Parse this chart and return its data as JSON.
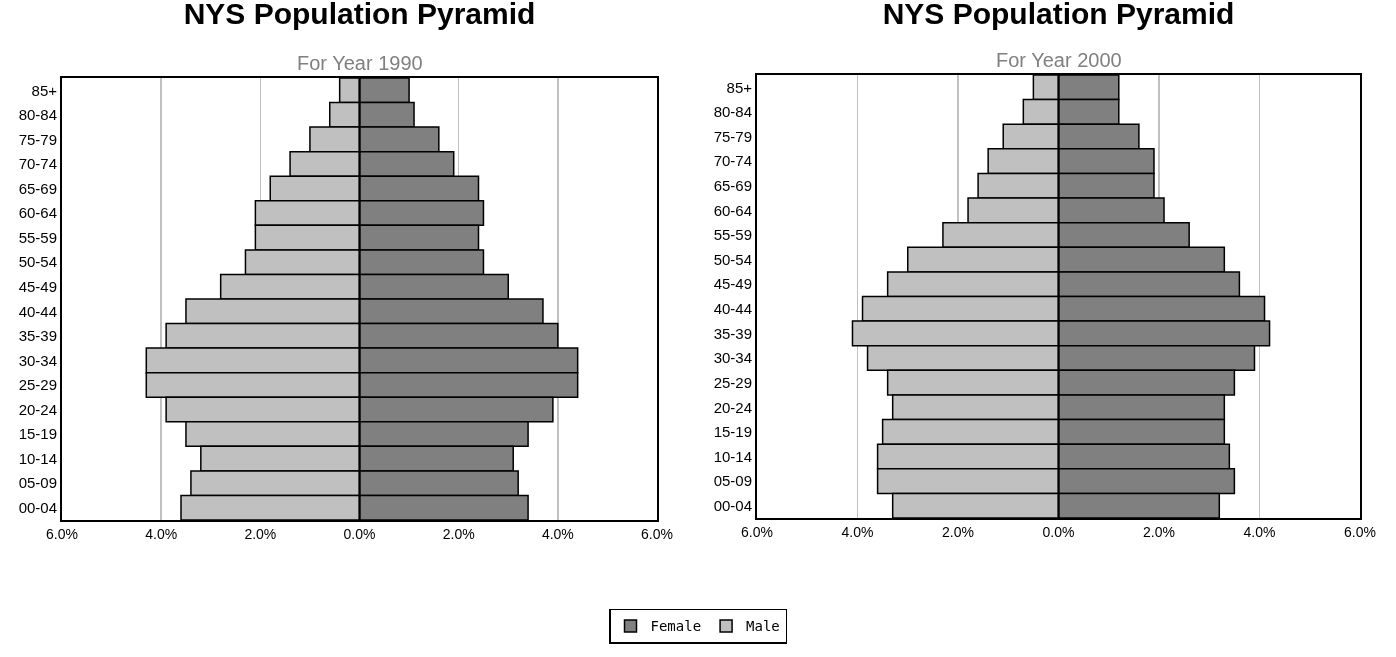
{
  "chart_data": [
    {
      "type": "bar",
      "title": "NYS Population Pyramid",
      "subtitle": "For Year 1990",
      "orientation": "horizontal",
      "stacked": true,
      "grid": "x",
      "legend": "bottom",
      "categories": [
        "85+",
        "80-84",
        "75-79",
        "70-74",
        "65-69",
        "60-64",
        "55-59",
        "50-54",
        "45-49",
        "40-44",
        "35-39",
        "30-34",
        "25-29",
        "20-24",
        "15-19",
        "10-14",
        "05-09",
        "00-04"
      ],
      "xlim": [
        -6,
        6
      ],
      "xticks": [
        {
          "value": -6,
          "label": "6.0%"
        },
        {
          "value": -4,
          "label": "4.0%"
        },
        {
          "value": -2,
          "label": "2.0%"
        },
        {
          "value": 0,
          "label": "0.0%"
        },
        {
          "value": 2,
          "label": "2.0%"
        },
        {
          "value": 4,
          "label": "4.0%"
        },
        {
          "value": 6,
          "label": "6.0%"
        }
      ],
      "series": [
        {
          "name": "Female",
          "color": "#808080",
          "values": [
            1.0,
            1.1,
            1.6,
            1.9,
            2.4,
            2.5,
            2.4,
            2.5,
            3.0,
            3.7,
            4.0,
            4.4,
            4.4,
            3.9,
            3.4,
            3.1,
            3.2,
            3.4
          ]
        },
        {
          "name": "Male",
          "color": "#c0c0c0",
          "values": [
            -0.4,
            -0.6,
            -1.0,
            -1.4,
            -1.8,
            -2.1,
            -2.1,
            -2.3,
            -2.8,
            -3.5,
            -3.9,
            -4.3,
            -4.3,
            -3.9,
            -3.5,
            -3.2,
            -3.4,
            -3.6
          ]
        }
      ]
    },
    {
      "type": "bar",
      "title": "NYS Population Pyramid",
      "subtitle": "For Year 2000",
      "orientation": "horizontal",
      "stacked": true,
      "grid": "x",
      "categories": [
        "85+",
        "80-84",
        "75-79",
        "70-74",
        "65-69",
        "60-64",
        "55-59",
        "50-54",
        "45-49",
        "40-44",
        "35-39",
        "30-34",
        "25-29",
        "20-24",
        "15-19",
        "10-14",
        "05-09",
        "00-04"
      ],
      "xlim": [
        -6,
        6
      ],
      "xticks": [
        {
          "value": -6,
          "label": "6.0%"
        },
        {
          "value": -4,
          "label": "4.0%"
        },
        {
          "value": -2,
          "label": "2.0%"
        },
        {
          "value": 0,
          "label": "0.0%"
        },
        {
          "value": 2,
          "label": "2.0%"
        },
        {
          "value": 4,
          "label": "4.0%"
        },
        {
          "value": 6,
          "label": "6.0%"
        }
      ],
      "series": [
        {
          "color": "#808080",
          "values": [
            1.2,
            1.2,
            1.6,
            1.9,
            1.9,
            2.1,
            2.6,
            3.3,
            3.6,
            4.1,
            4.2,
            3.9,
            3.5,
            3.3,
            3.3,
            3.4,
            3.5,
            3.2
          ]
        },
        {
          "color": "#c0c0c0",
          "values": [
            -0.5,
            -0.7,
            -1.1,
            -1.4,
            -1.6,
            -1.8,
            -2.3,
            -3.0,
            -3.4,
            -3.9,
            -4.1,
            -3.8,
            -3.4,
            -3.3,
            -3.5,
            -3.6,
            -3.6,
            -3.3
          ]
        }
      ]
    }
  ]
}
